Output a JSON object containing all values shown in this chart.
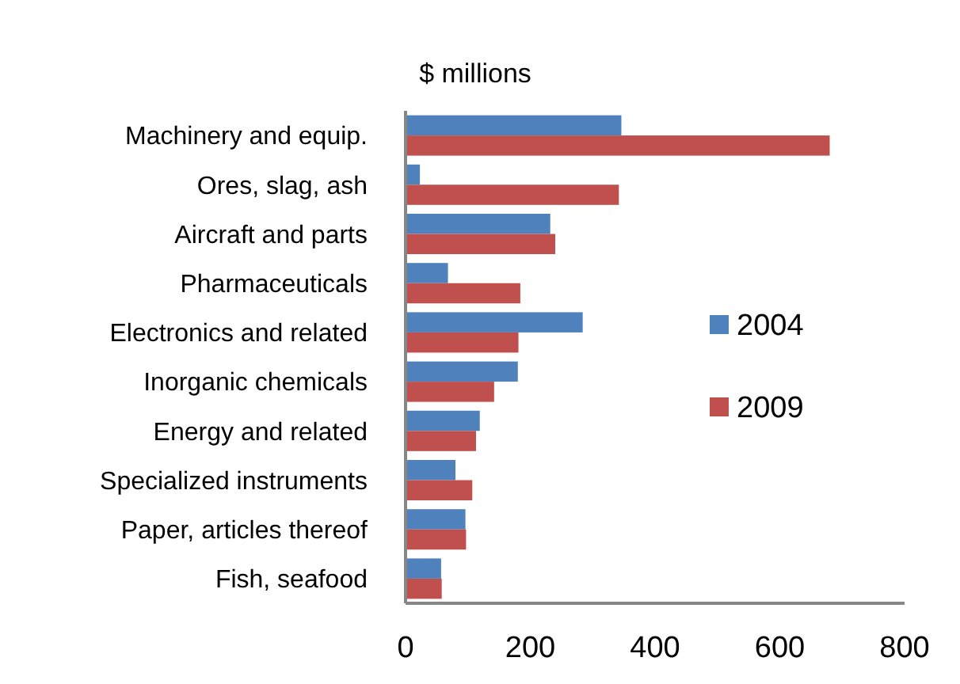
{
  "chart_data": {
    "type": "bar",
    "orientation": "horizontal",
    "title": "$ millions",
    "categories": [
      "Machinery and equip.",
      "Ores, slag, ash",
      "Aircraft and parts",
      "Pharmaceuticals",
      "Electronics and related",
      "Inorganic chemicals",
      "Energy and related",
      "Specialized instruments",
      "Paper, articles thereof",
      "Fish, seafood"
    ],
    "series": [
      {
        "name": "2004",
        "color": "#4f81bd",
        "values": [
          346,
          23,
          232,
          68,
          284,
          180,
          119,
          80,
          96,
          57
        ]
      },
      {
        "name": "2009",
        "color": "#c0504d",
        "values": [
          680,
          342,
          240,
          184,
          181,
          142,
          113,
          107,
          97,
          58
        ]
      }
    ],
    "xlim": [
      0,
      800
    ],
    "xticks": [
      0,
      200,
      400,
      600,
      800
    ],
    "grid": false,
    "legend": "right"
  }
}
